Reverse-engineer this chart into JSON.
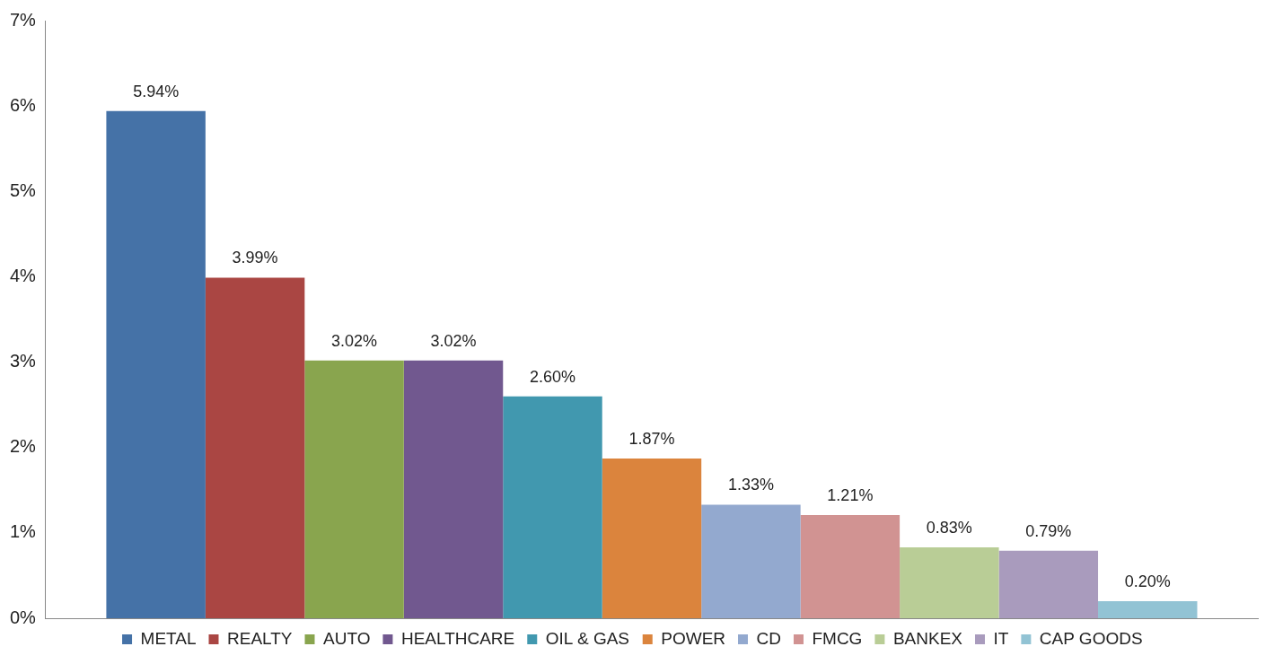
{
  "chart_data": {
    "type": "bar",
    "categories": [
      null
    ],
    "series": [
      {
        "name": "METAL",
        "color": "#4572a7",
        "values": [
          5.94
        ],
        "value_labels": [
          "5.94%"
        ]
      },
      {
        "name": "REALTY",
        "color": "#aa4643",
        "values": [
          3.99
        ],
        "value_labels": [
          "3.99%"
        ]
      },
      {
        "name": "AUTO",
        "color": "#89a54e",
        "values": [
          3.02
        ],
        "value_labels": [
          "3.02%"
        ]
      },
      {
        "name": "HEALTHCARE",
        "color": "#71588f",
        "values": [
          3.02
        ],
        "value_labels": [
          "3.02%"
        ]
      },
      {
        "name": "OIL & GAS",
        "color": "#4198af",
        "values": [
          2.6
        ],
        "value_labels": [
          "2.60%"
        ]
      },
      {
        "name": "POWER",
        "color": "#db843d",
        "values": [
          1.87
        ],
        "value_labels": [
          "1.87%"
        ]
      },
      {
        "name": "CD",
        "color": "#93a9cf",
        "values": [
          1.33
        ],
        "value_labels": [
          "1.33%"
        ]
      },
      {
        "name": "FMCG",
        "color": "#d19392",
        "values": [
          1.21
        ],
        "value_labels": [
          "1.21%"
        ]
      },
      {
        "name": "BANKEX",
        "color": "#b9cd96",
        "values": [
          0.83
        ],
        "value_labels": [
          "0.83%"
        ]
      },
      {
        "name": "IT",
        "color": "#a99bbd",
        "values": [
          0.79
        ],
        "value_labels": [
          "0.79%"
        ]
      },
      {
        "name": "CAP GOODS",
        "color": "#92c3d4",
        "values": [
          0.2
        ],
        "value_labels": [
          "0.20%"
        ]
      }
    ],
    "ylim": [
      0,
      7
    ],
    "yticks": [
      {
        "value": 0,
        "label": "0%"
      },
      {
        "value": 1,
        "label": "1%"
      },
      {
        "value": 2,
        "label": "2%"
      },
      {
        "value": 3,
        "label": "3%"
      },
      {
        "value": 4,
        "label": "4%"
      },
      {
        "value": 5,
        "label": "5%"
      },
      {
        "value": 6,
        "label": "6%"
      },
      {
        "value": 7,
        "label": "7%"
      }
    ],
    "grid": false,
    "legend": "bottom"
  }
}
